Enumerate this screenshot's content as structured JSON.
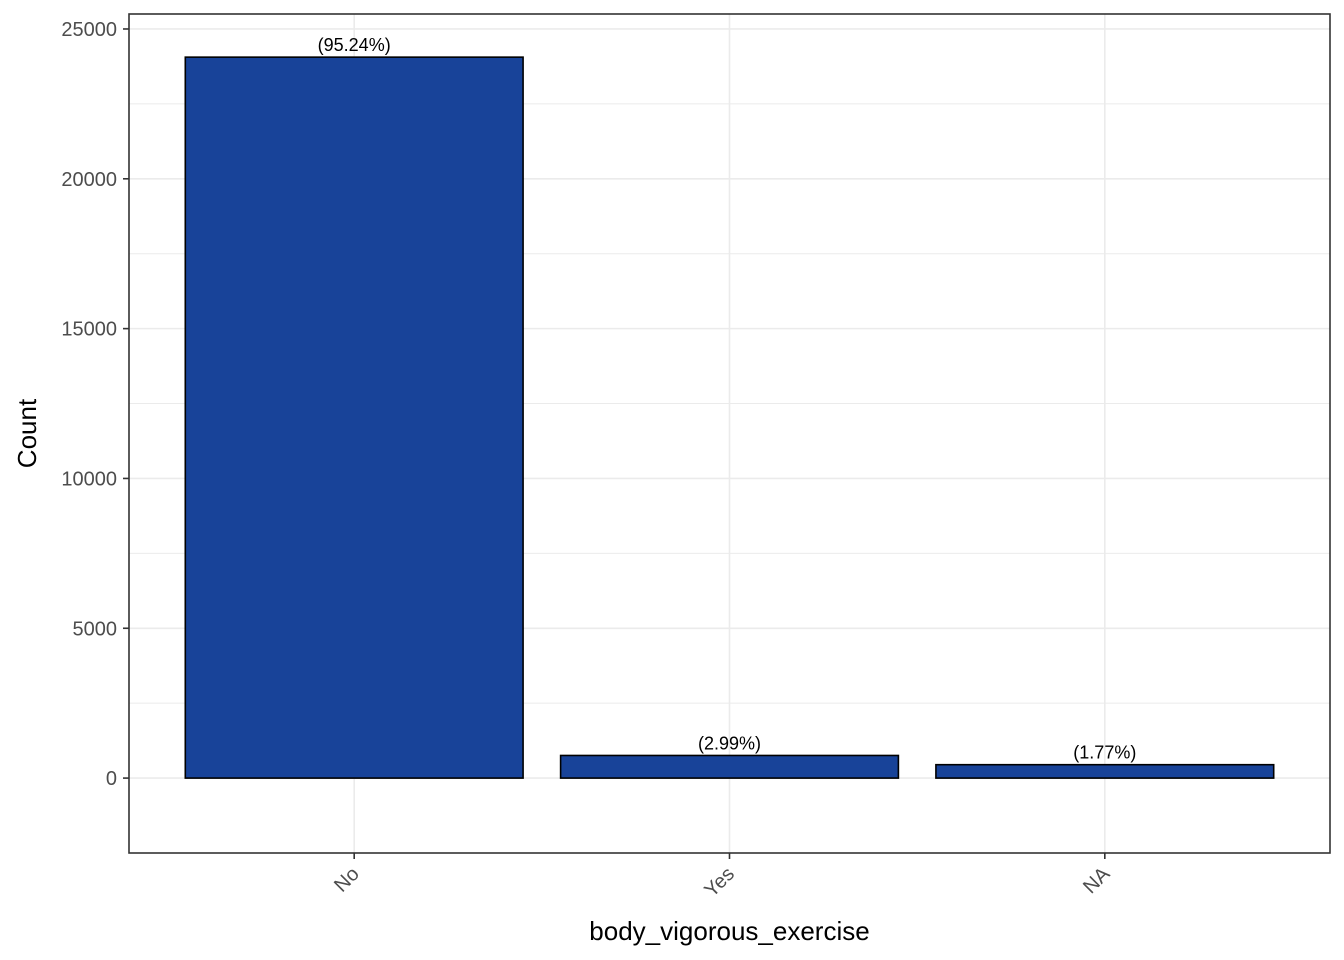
{
  "chart_data": {
    "type": "bar",
    "categories": [
      "No",
      "Yes",
      "NA"
    ],
    "values": [
      24060,
      755,
      447
    ],
    "data_labels": [
      "(95.24%)",
      "(2.99%)",
      "(1.77%)"
    ],
    "xlabel": "body_vigorous_exercise",
    "ylabel": "Count",
    "ylim": [
      -2500,
      25500
    ],
    "y_ticks": [
      0,
      5000,
      10000,
      15000,
      20000,
      25000
    ],
    "y_tick_labels": [
      "0",
      "5000",
      "10000",
      "15000",
      "20000",
      "25000"
    ],
    "grid": true,
    "x_tick_rotation_deg": -45,
    "colors": {
      "bar_fill": "#184399",
      "bar_stroke": "#000000",
      "grid": "#ebebeb",
      "panel_border": "#333333",
      "background": "#ffffff"
    }
  }
}
